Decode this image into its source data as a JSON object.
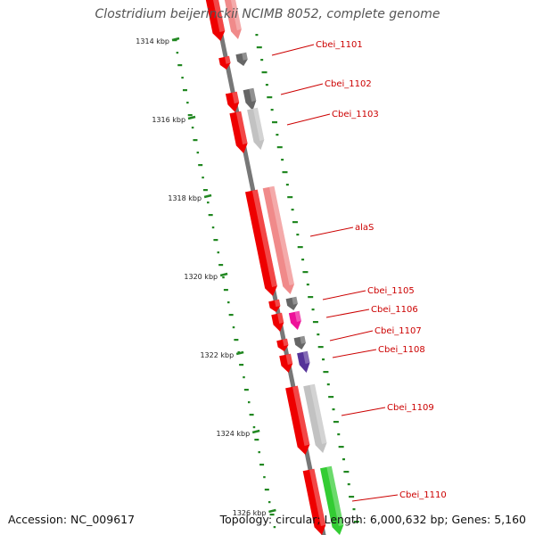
{
  "title": "Clostridium beijerinckii NCIMB 8052, complete genome",
  "footer": {
    "accession": "Accession: NC_009617",
    "summary": "Topology: circular; Length: 6,000,632 bp; Genes: 5,160"
  },
  "ticks": [
    {
      "label": "1314 kbp"
    },
    {
      "label": "1316 kbp"
    },
    {
      "label": "1318 kbp"
    },
    {
      "label": "1320 kbp"
    },
    {
      "label": "1322 kbp"
    },
    {
      "label": "1324 kbp"
    },
    {
      "label": "1326 kbp"
    }
  ],
  "gene_labels": [
    {
      "name": "Cbei_1101"
    },
    {
      "name": "Cbei_1102"
    },
    {
      "name": "Cbei_1103"
    },
    {
      "name": "alaS"
    },
    {
      "name": "Cbei_1105"
    },
    {
      "name": "Cbei_1106"
    },
    {
      "name": "Cbei_1107"
    },
    {
      "name": "Cbei_1108"
    },
    {
      "name": "Cbei_1109"
    },
    {
      "name": "Cbei_1110"
    }
  ],
  "colors": {
    "cds_red": "#ee0000",
    "pink": "#f08a8a",
    "gray_dark": "#666666",
    "gray_light": "#c2c2c2",
    "magenta": "#ee1199",
    "purple": "#553399",
    "green": "#33cc33",
    "backbone": "#777777",
    "gc_green": "#228822"
  }
}
